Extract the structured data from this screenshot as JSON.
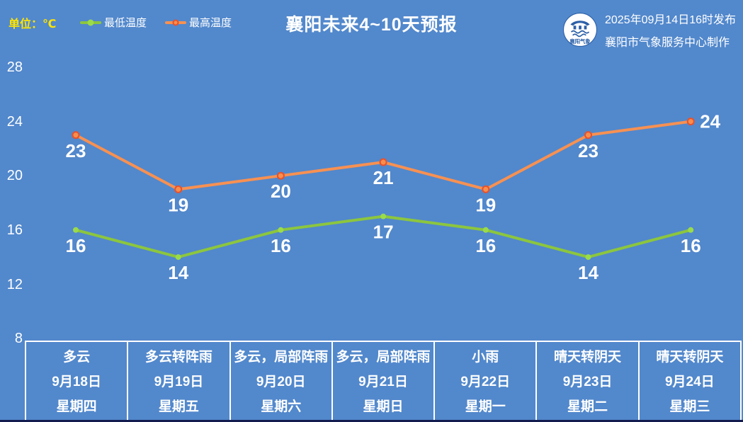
{
  "header": {
    "unit_label": "单位：℃",
    "title": "襄阳未来4~10天预报",
    "issue_line1": "2025年09月14日16时发布",
    "issue_line2": "襄阳市气象服务中心制作",
    "logo_text": "襄阳气象"
  },
  "colors": {
    "background": "#5288CC",
    "unit_text": "#FFE400",
    "text": "#FFFFFF",
    "min_line": "#8CC63E",
    "min_marker": "#9ADB4A",
    "max_line": "#F79152",
    "max_marker_fill": "#F78E4E",
    "max_marker_border": "#E8512B",
    "bottom_strip": "#131C4F",
    "logo_blue": "#2B5FA7"
  },
  "chart_data": {
    "type": "line",
    "title": "襄阳未来4~10天预报",
    "unit": "℃",
    "categories": [
      "9月18日",
      "9月19日",
      "9月20日",
      "9月21日",
      "9月22日",
      "9月23日",
      "9月24日"
    ],
    "weekdays": [
      "星期四",
      "星期五",
      "星期六",
      "星期日",
      "星期一",
      "星期二",
      "星期三"
    ],
    "weather": [
      "多云",
      "多云转阵雨",
      "多云，局部阵雨",
      "多云，局部阵雨",
      "小雨",
      "晴天转阴天",
      "晴天转阴天"
    ],
    "series": [
      {
        "name": "最低温度",
        "color": "#8CC63E",
        "marker_fill": "#9ADB4A",
        "marker_border": null,
        "values": [
          16,
          14,
          16,
          17,
          16,
          14,
          16
        ]
      },
      {
        "name": "最高温度",
        "color": "#F79152",
        "marker_fill": "#F78E4E",
        "marker_border": "#E8512B",
        "values": [
          23,
          19,
          20,
          21,
          19,
          23,
          24
        ]
      }
    ],
    "yticks": [
      28,
      24,
      20,
      16,
      12,
      8
    ],
    "ylim": [
      8,
      28
    ],
    "tick_step": 4,
    "grid": false,
    "legend_position": "top-left"
  }
}
